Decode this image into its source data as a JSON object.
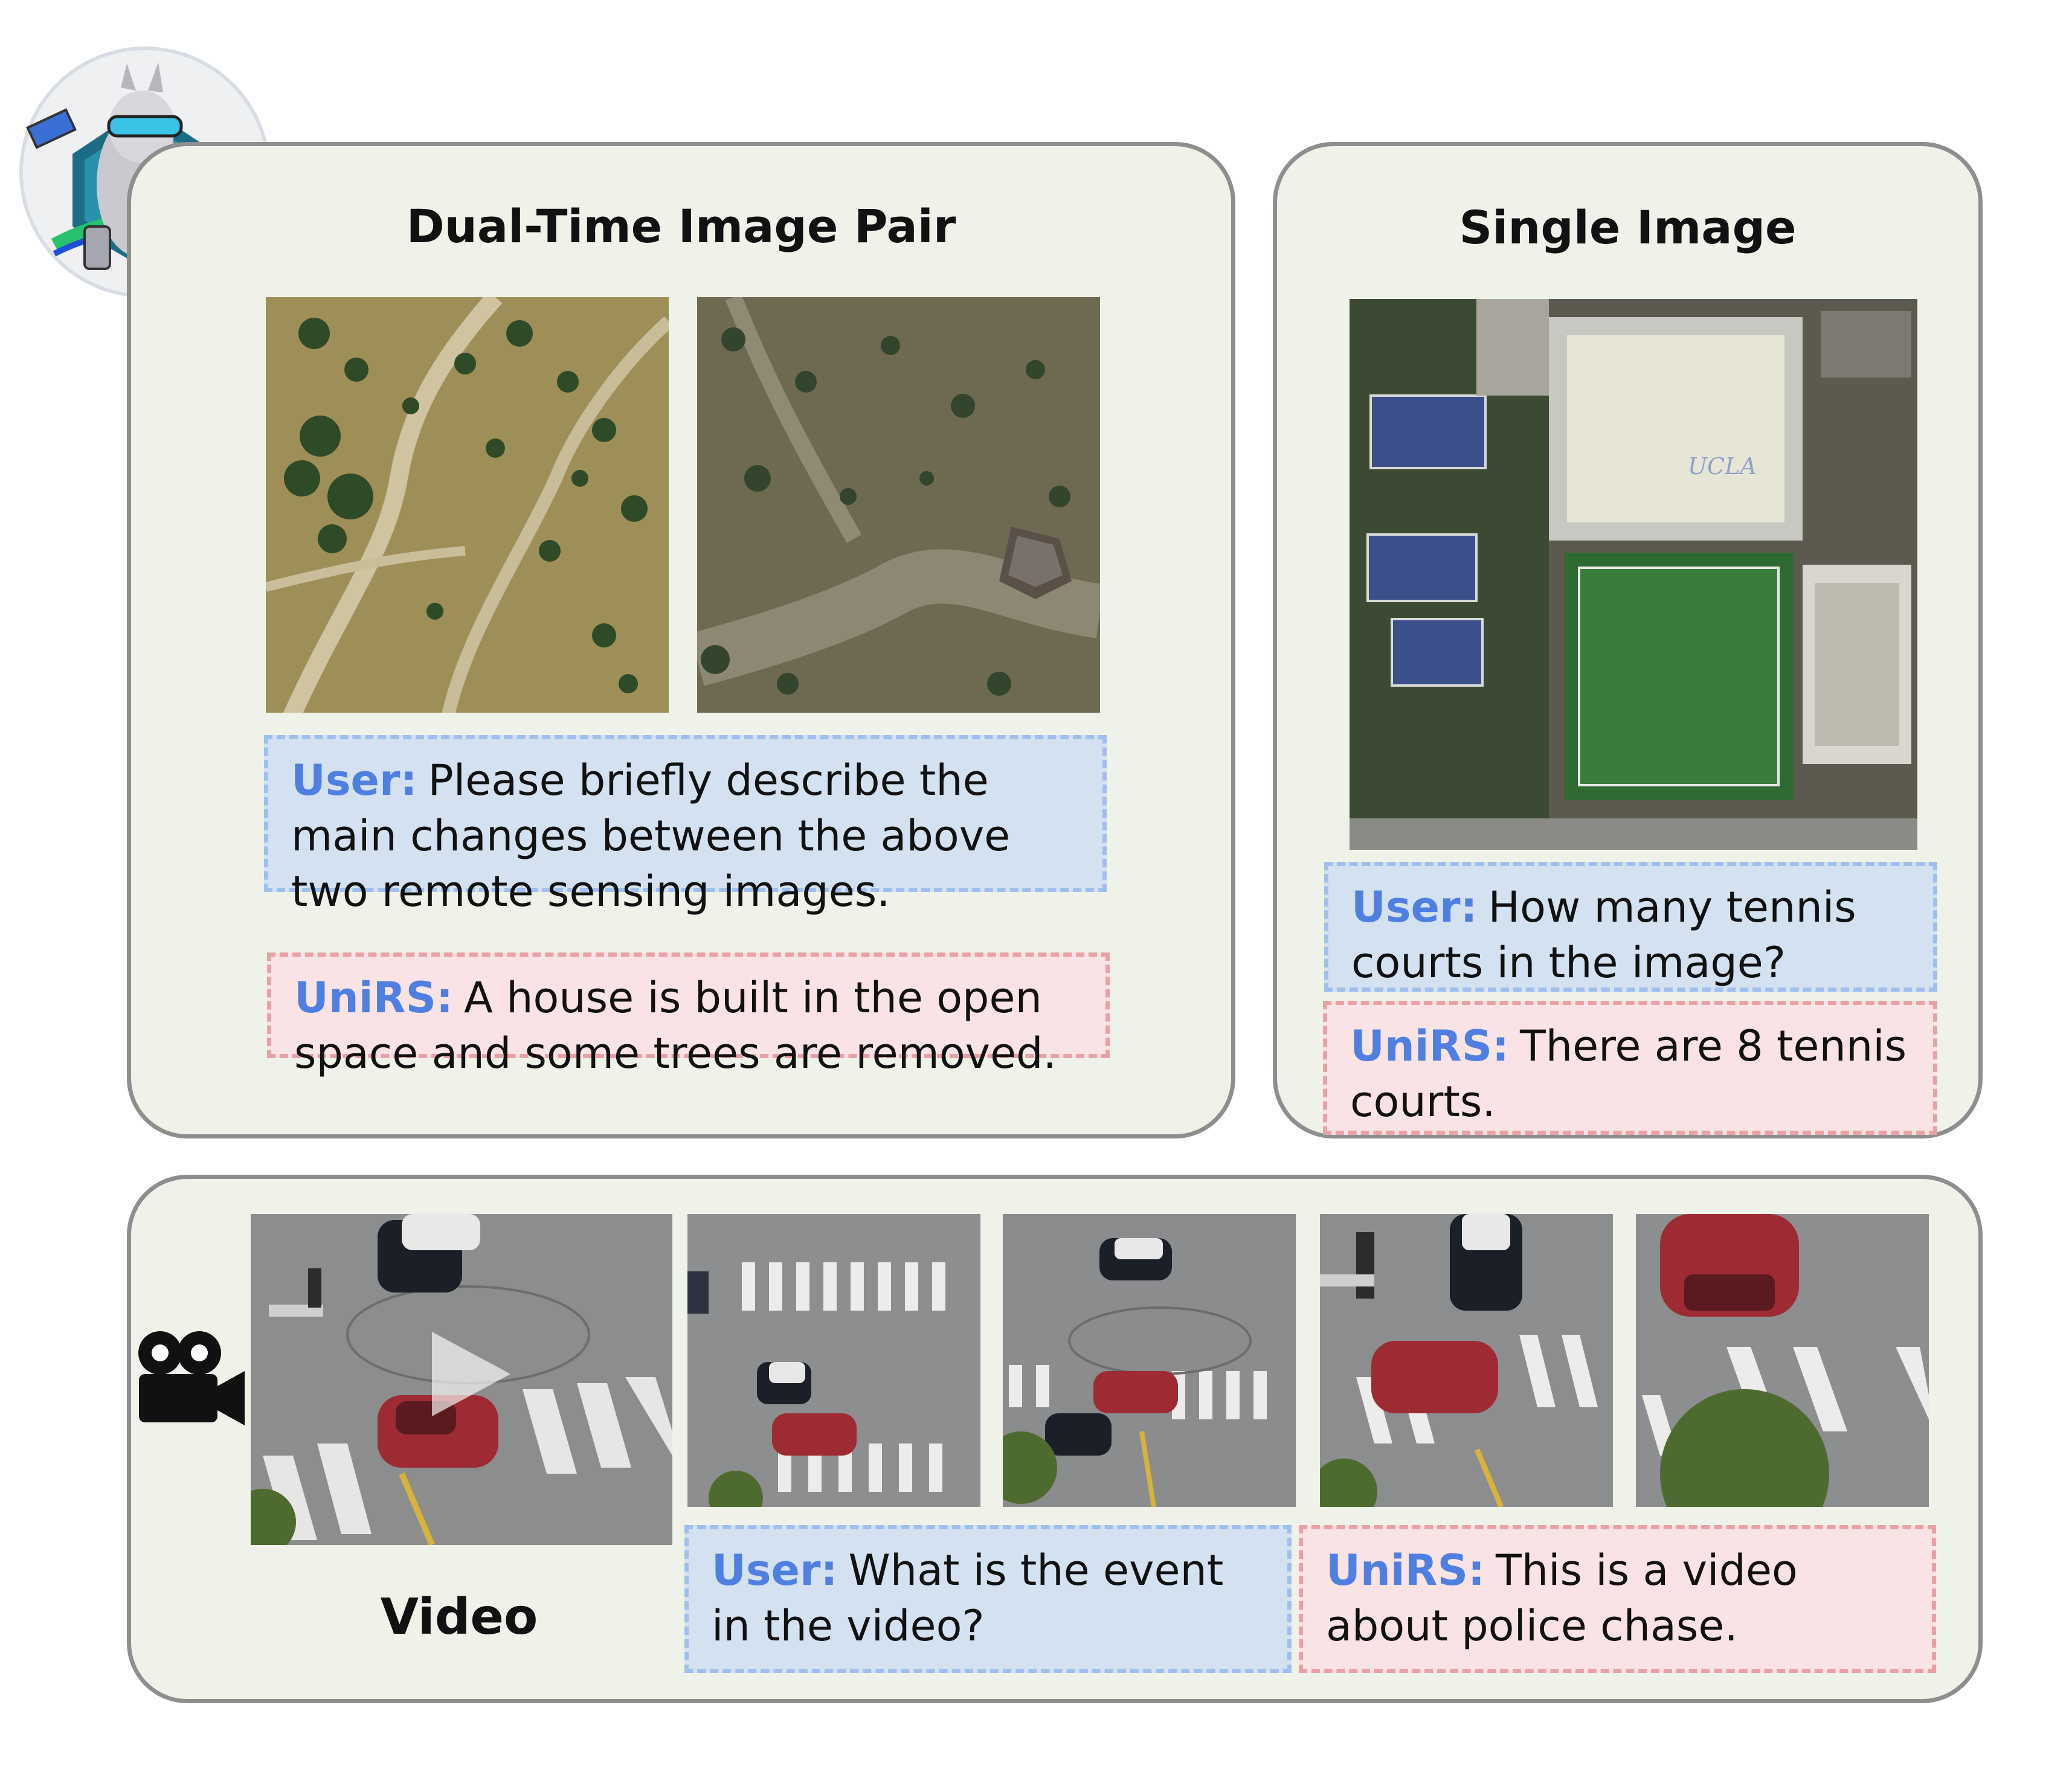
{
  "dual_panel": {
    "title": "Dual-Time Image Pair",
    "user_label": "User:",
    "user_text": "Please briefly describe the main changes between the above two remote sensing images.",
    "model_label": "UniRS:",
    "model_text": "A house is built in the open space and some trees are removed."
  },
  "single_panel": {
    "title": "Single Image",
    "user_label": "User:",
    "user_text": "How many tennis courts in the image?",
    "model_label": "UniRS:",
    "model_text": "There are 8 tennis courts.",
    "stadium_roof_text": "UCLA"
  },
  "video_panel": {
    "video_label": "Video",
    "user_label": "User:",
    "user_text": "What is the event in the video?",
    "model_label": "UniRS:",
    "model_text": "This is a video about police chase."
  },
  "icons": {
    "logo": "llama-satellite-logo-icon",
    "camera": "movie-camera-icon",
    "play": "play-icon"
  },
  "colors": {
    "panel_bg": "#eef2e8",
    "panel_border": "#8e8e8e",
    "user_bg": "#d3e1f0",
    "user_border": "#9fbfee",
    "model_bg": "#fae3e5",
    "model_border": "#e9a1a5",
    "speaker_label": "#4f7fe0"
  }
}
